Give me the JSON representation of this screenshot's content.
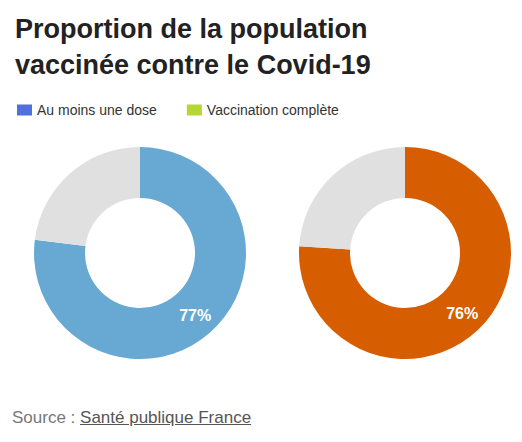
{
  "chart_data": {
    "type": "pie",
    "title": "Proportion de la population vaccinée contre le Covid-19",
    "series": [
      {
        "name": "Au moins une dose",
        "color": "#68a9d3",
        "values": [
          77
        ],
        "value_labels": [
          "77%"
        ]
      },
      {
        "name": "Vaccination complète",
        "color": "#d65e00",
        "values": [
          76
        ],
        "value_labels": [
          "76%"
        ]
      }
    ],
    "ylim": [
      0,
      100
    ],
    "data_labels": true,
    "legend": "top-left",
    "source": {
      "prefix": "Source :",
      "name": "Santé publique France"
    }
  }
}
